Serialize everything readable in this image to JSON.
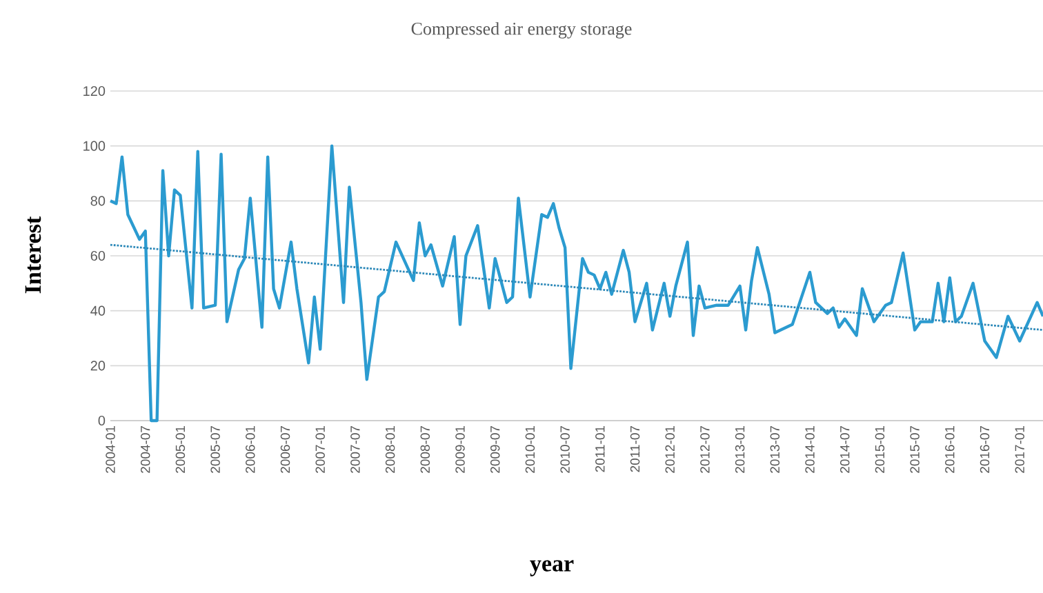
{
  "chart_data": {
    "type": "line",
    "title": "Compressed air energy storage",
    "xlabel": "year",
    "ylabel": "Interest",
    "xlim": [
      "2004-01",
      "2017-05"
    ],
    "ylim": [
      0,
      120
    ],
    "yticks": [
      0,
      20,
      40,
      60,
      80,
      100,
      120
    ],
    "xticks": [
      "2004-01",
      "2004-07",
      "2005-01",
      "2005-07",
      "2006-01",
      "2006-07",
      "2007-01",
      "2007-07",
      "2008-01",
      "2008-07",
      "2009-01",
      "2009-07",
      "2010-01",
      "2010-07",
      "2011-01",
      "2011-07",
      "2012-01",
      "2012-07",
      "2013-01",
      "2013-07",
      "2014-01",
      "2014-07",
      "2015-01",
      "2015-07",
      "2016-01",
      "2016-07",
      "2017-01"
    ],
    "grid": "y",
    "series": [
      {
        "color": "#2b9bd0",
        "line_style": "solid",
        "x": [
          "2004-01",
          "2004-02",
          "2004-03",
          "2004-04",
          "2004-06",
          "2004-07",
          "2004-08",
          "2004-09",
          "2004-10",
          "2004-11",
          "2004-12",
          "2005-01",
          "2005-03",
          "2005-04",
          "2005-05",
          "2005-07",
          "2005-08",
          "2005-09",
          "2005-11",
          "2005-12",
          "2006-01",
          "2006-03",
          "2006-04",
          "2006-05",
          "2006-06",
          "2006-08",
          "2006-09",
          "2006-11",
          "2006-12",
          "2007-01",
          "2007-03",
          "2007-05",
          "2007-06",
          "2007-08",
          "2007-09",
          "2007-11",
          "2007-12",
          "2008-02",
          "2008-05",
          "2008-06",
          "2008-07",
          "2008-08",
          "2008-10",
          "2008-12",
          "2009-01",
          "2009-02",
          "2009-04",
          "2009-06",
          "2009-07",
          "2009-09",
          "2009-10",
          "2009-11",
          "2010-01",
          "2010-03",
          "2010-04",
          "2010-05",
          "2010-06",
          "2010-07",
          "2010-08",
          "2010-10",
          "2010-11",
          "2010-12",
          "2011-01",
          "2011-02",
          "2011-03",
          "2011-05",
          "2011-06",
          "2011-07",
          "2011-09",
          "2011-10",
          "2011-12",
          "2012-01",
          "2012-02",
          "2012-04",
          "2012-05",
          "2012-06",
          "2012-07",
          "2012-09",
          "2012-11",
          "2013-01",
          "2013-02",
          "2013-03",
          "2013-04",
          "2013-06",
          "2013-07",
          "2013-10",
          "2014-01",
          "2014-02",
          "2014-04",
          "2014-05",
          "2014-06",
          "2014-07",
          "2014-09",
          "2014-10",
          "2014-12",
          "2015-02",
          "2015-03",
          "2015-05",
          "2015-07",
          "2015-08",
          "2015-10",
          "2015-11",
          "2015-12",
          "2016-01",
          "2016-02",
          "2016-03",
          "2016-05",
          "2016-07",
          "2016-09",
          "2016-11",
          "2017-01",
          "2017-04",
          "2017-05"
        ],
        "values": [
          80,
          79,
          96,
          75,
          66,
          69,
          0,
          0,
          91,
          60,
          84,
          82,
          41,
          98,
          41,
          42,
          97,
          36,
          55,
          59,
          81,
          34,
          96,
          48,
          41,
          65,
          48,
          21,
          45,
          26,
          100,
          43,
          85,
          43,
          15,
          45,
          47,
          65,
          51,
          72,
          60,
          64,
          49,
          67,
          35,
          60,
          71,
          41,
          59,
          43,
          45,
          81,
          45,
          75,
          74,
          79,
          70,
          63,
          19,
          59,
          54,
          53,
          48,
          54,
          46,
          62,
          54,
          36,
          50,
          33,
          50,
          38,
          49,
          65,
          31,
          49,
          41,
          42,
          42,
          49,
          33,
          51,
          63,
          46,
          32,
          35,
          54,
          43,
          39,
          41,
          34,
          37,
          31,
          48,
          36,
          42,
          43,
          61,
          33,
          36,
          36,
          50,
          36,
          52,
          36,
          38,
          50,
          29,
          23,
          38,
          29,
          43,
          38
        ]
      },
      {
        "type": "line",
        "color": "#2b88b8",
        "line_style": "dotted",
        "x": [
          "2004-01",
          "2017-05"
        ],
        "values": [
          64,
          33
        ]
      }
    ]
  }
}
